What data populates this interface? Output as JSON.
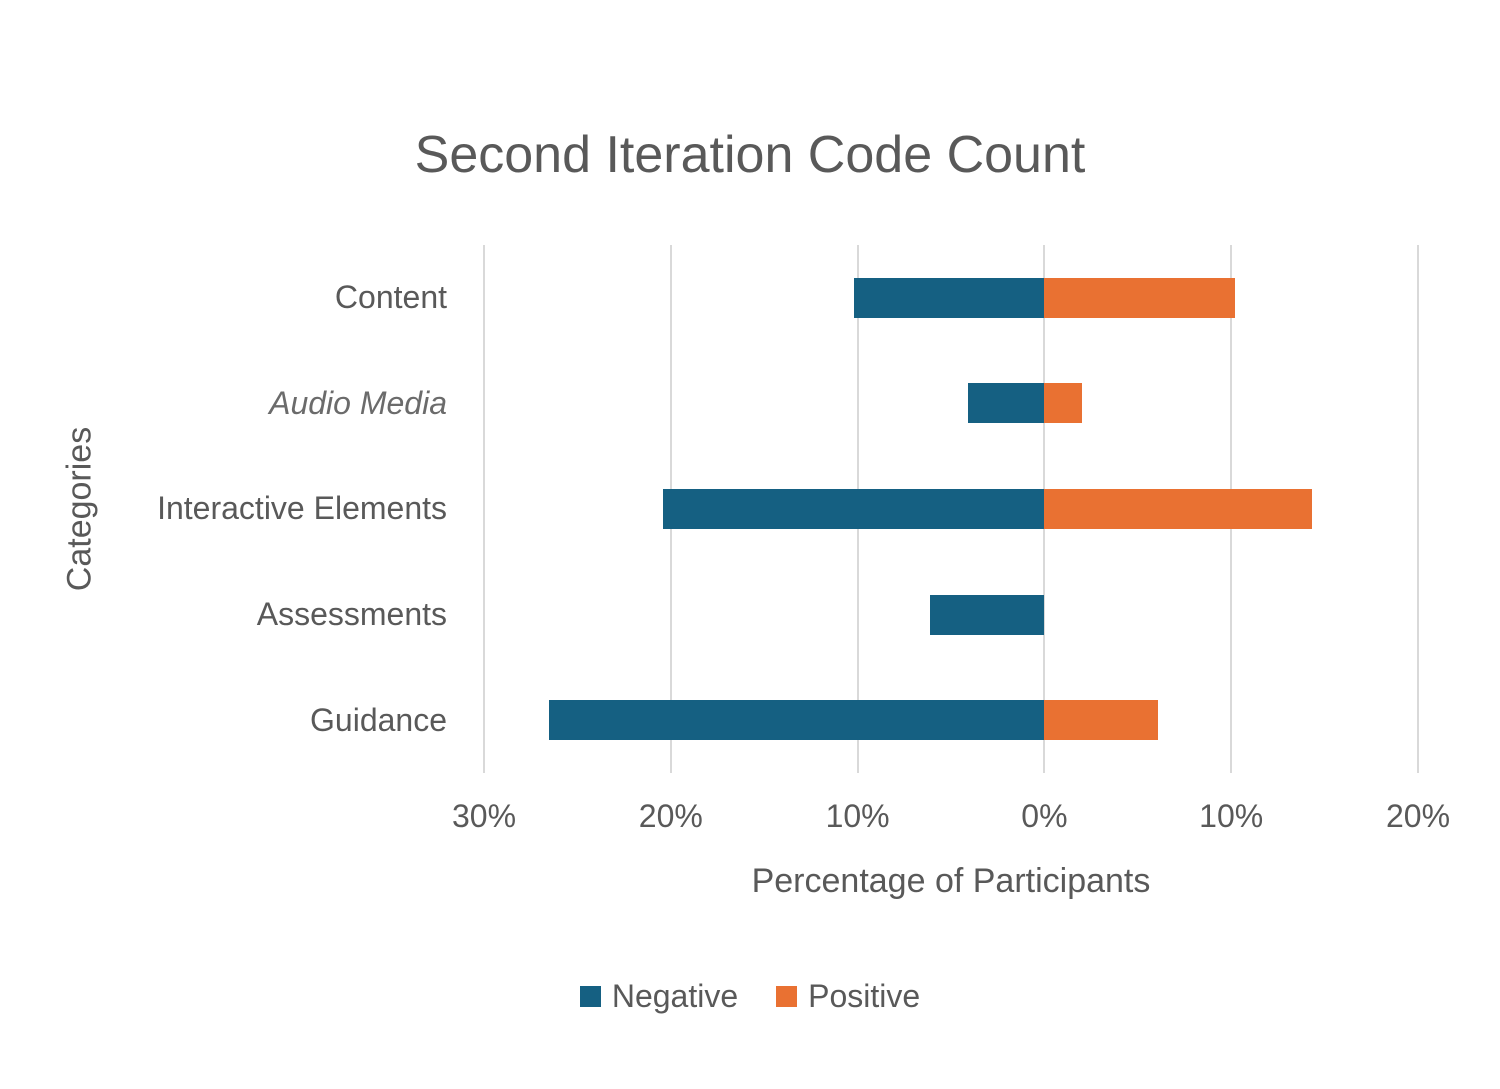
{
  "colors": {
    "negative": "#156082",
    "positive": "#E97132",
    "gridline": "#D9D9D9",
    "text": "#595959"
  },
  "chart_data": {
    "type": "bar",
    "variant": "diverging-horizontal",
    "title": "Second Iteration Code Count",
    "xlabel": "Percentage of Participants",
    "ylabel": "Categories",
    "categories": [
      "Content",
      "Audio Media",
      "Interactive Elements",
      "Assessments",
      "Guidance"
    ],
    "category_italic": [
      false,
      true,
      false,
      false,
      false
    ],
    "series": [
      {
        "name": "Negative",
        "side": "left",
        "color": "#156082",
        "values": [
          10.2,
          4.1,
          20.4,
          6.1,
          26.5
        ]
      },
      {
        "name": "Positive",
        "side": "right",
        "color": "#E97132",
        "values": [
          10.2,
          2.0,
          14.3,
          0,
          6.1
        ]
      }
    ],
    "x_axis": {
      "min": -30,
      "max": 20,
      "tick_step": 10,
      "tick_values": [
        -30,
        -20,
        -10,
        0,
        10,
        20
      ],
      "tick_labels": [
        "30%",
        "20%",
        "10%",
        "0%",
        "10%",
        "20%"
      ],
      "unit": "%"
    },
    "grid": true,
    "legend_position": "bottom"
  }
}
